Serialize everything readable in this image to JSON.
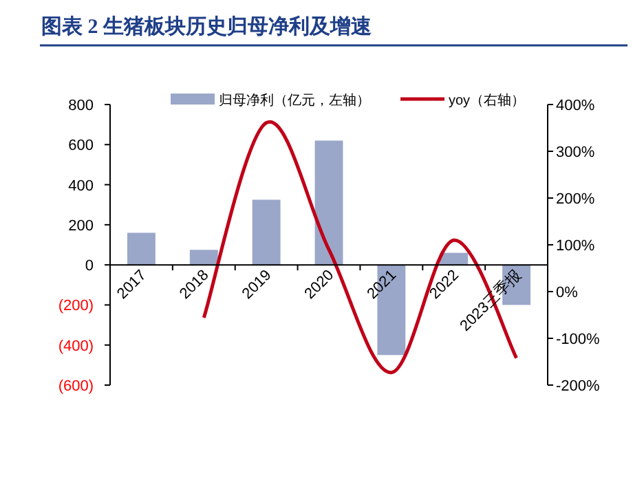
{
  "chart_data": {
    "type": "bar",
    "title": "图表 2   生猪板块历史归母净利及增速",
    "categories": [
      "2017",
      "2018",
      "2019",
      "2020",
      "2021",
      "2022",
      "2023三季报"
    ],
    "series": [
      {
        "name": "归母净利（亿元，左轴）",
        "color": "#9aa7c9",
        "values": [
          160,
          75,
          325,
          620,
          -450,
          60,
          -200
        ]
      },
      {
        "name": "yoy（右轴）",
        "type": "line",
        "axis": "y2",
        "color": "#c00018",
        "values": [
          null,
          -56,
          361,
          90,
          -173,
          110,
          -142
        ]
      }
    ],
    "ylim": [
      -600,
      800
    ],
    "yticks": [
      {
        "value": -600,
        "label": "(600)"
      },
      {
        "value": -400,
        "label": "(400)"
      },
      {
        "value": -200,
        "label": "(200)"
      },
      0,
      200,
      400,
      600,
      800
    ],
    "y2lim": [
      -200,
      400
    ],
    "y2ticks": [
      {
        "value": -200,
        "label": "-200%"
      },
      {
        "value": -100,
        "label": "-100%"
      },
      {
        "value": 0,
        "label": "0%"
      },
      {
        "value": 100,
        "label": "100%"
      },
      {
        "value": 200,
        "label": "200%"
      },
      {
        "value": 300,
        "label": "300%"
      },
      {
        "value": 400,
        "label": "400%"
      }
    ],
    "legend": "top",
    "grid": false
  }
}
